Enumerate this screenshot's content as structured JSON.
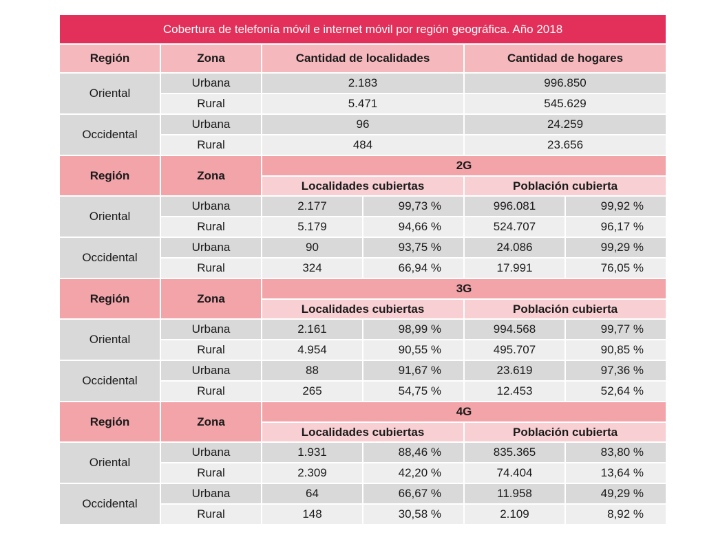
{
  "title": "Cobertura de telefonía móvil e internet móvil por región geográfica. Año 2018",
  "labels": {
    "region": "Región",
    "zona": "Zona",
    "cantidad_localidades": "Cantidad de localidades",
    "cantidad_hogares": "Cantidad de hogares",
    "localidades_cubiertas": "Localidades cubiertas",
    "poblacion_cubierta": "Población cubierta"
  },
  "summary": [
    {
      "region": "Oriental",
      "rows": [
        {
          "zona": "Urbana",
          "localidades": "2.183",
          "hogares": "996.850"
        },
        {
          "zona": "Rural",
          "localidades": "5.471",
          "hogares": "545.629"
        }
      ]
    },
    {
      "region": "Occidental",
      "rows": [
        {
          "zona": "Urbana",
          "localidades": "96",
          "hogares": "24.259"
        },
        {
          "zona": "Rural",
          "localidades": "484",
          "hogares": "23.656"
        }
      ]
    }
  ],
  "generations": [
    {
      "name": "2G",
      "regions": [
        {
          "region": "Oriental",
          "rows": [
            {
              "zona": "Urbana",
              "loc": "2.177",
              "loc_pct": "99,73 %",
              "pob": "996.081",
              "pob_pct": "99,92 %"
            },
            {
              "zona": "Rural",
              "loc": "5.179",
              "loc_pct": "94,66 %",
              "pob": "524.707",
              "pob_pct": "96,17 %"
            }
          ]
        },
        {
          "region": "Occidental",
          "rows": [
            {
              "zona": "Urbana",
              "loc": "90",
              "loc_pct": "93,75 %",
              "pob": "24.086",
              "pob_pct": "99,29 %"
            },
            {
              "zona": "Rural",
              "loc": "324",
              "loc_pct": "66,94 %",
              "pob": "17.991",
              "pob_pct": "76,05 %"
            }
          ]
        }
      ]
    },
    {
      "name": "3G",
      "regions": [
        {
          "region": "Oriental",
          "rows": [
            {
              "zona": "Urbana",
              "loc": "2.161",
              "loc_pct": "98,99 %",
              "pob": "994.568",
              "pob_pct": "99,77 %"
            },
            {
              "zona": "Rural",
              "loc": "4.954",
              "loc_pct": "90,55 %",
              "pob": "495.707",
              "pob_pct": "90,85 %"
            }
          ]
        },
        {
          "region": "Occidental",
          "rows": [
            {
              "zona": "Urbana",
              "loc": "88",
              "loc_pct": "91,67 %",
              "pob": "23.619",
              "pob_pct": "97,36 %"
            },
            {
              "zona": "Rural",
              "loc": "265",
              "loc_pct": "54,75 %",
              "pob": "12.453",
              "pob_pct": "52,64 %"
            }
          ]
        }
      ]
    },
    {
      "name": "4G",
      "regions": [
        {
          "region": "Oriental",
          "rows": [
            {
              "zona": "Urbana",
              "loc": "1.931",
              "loc_pct": "88,46 %",
              "pob": "835.365",
              "pob_pct": "83,80 %"
            },
            {
              "zona": "Rural",
              "loc": "2.309",
              "loc_pct": "42,20 %",
              "pob": "74.404",
              "pob_pct": "13,64 %"
            }
          ]
        },
        {
          "region": "Occidental",
          "rows": [
            {
              "zona": "Urbana",
              "loc": "64",
              "loc_pct": "66,67 %",
              "pob": "11.958",
              "pob_pct": "49,29 %"
            },
            {
              "zona": "Rural",
              "loc": "148",
              "loc_pct": "30,58 %",
              "pob": "2.109",
              "pob_pct": "8,92 %"
            }
          ]
        }
      ]
    }
  ]
}
